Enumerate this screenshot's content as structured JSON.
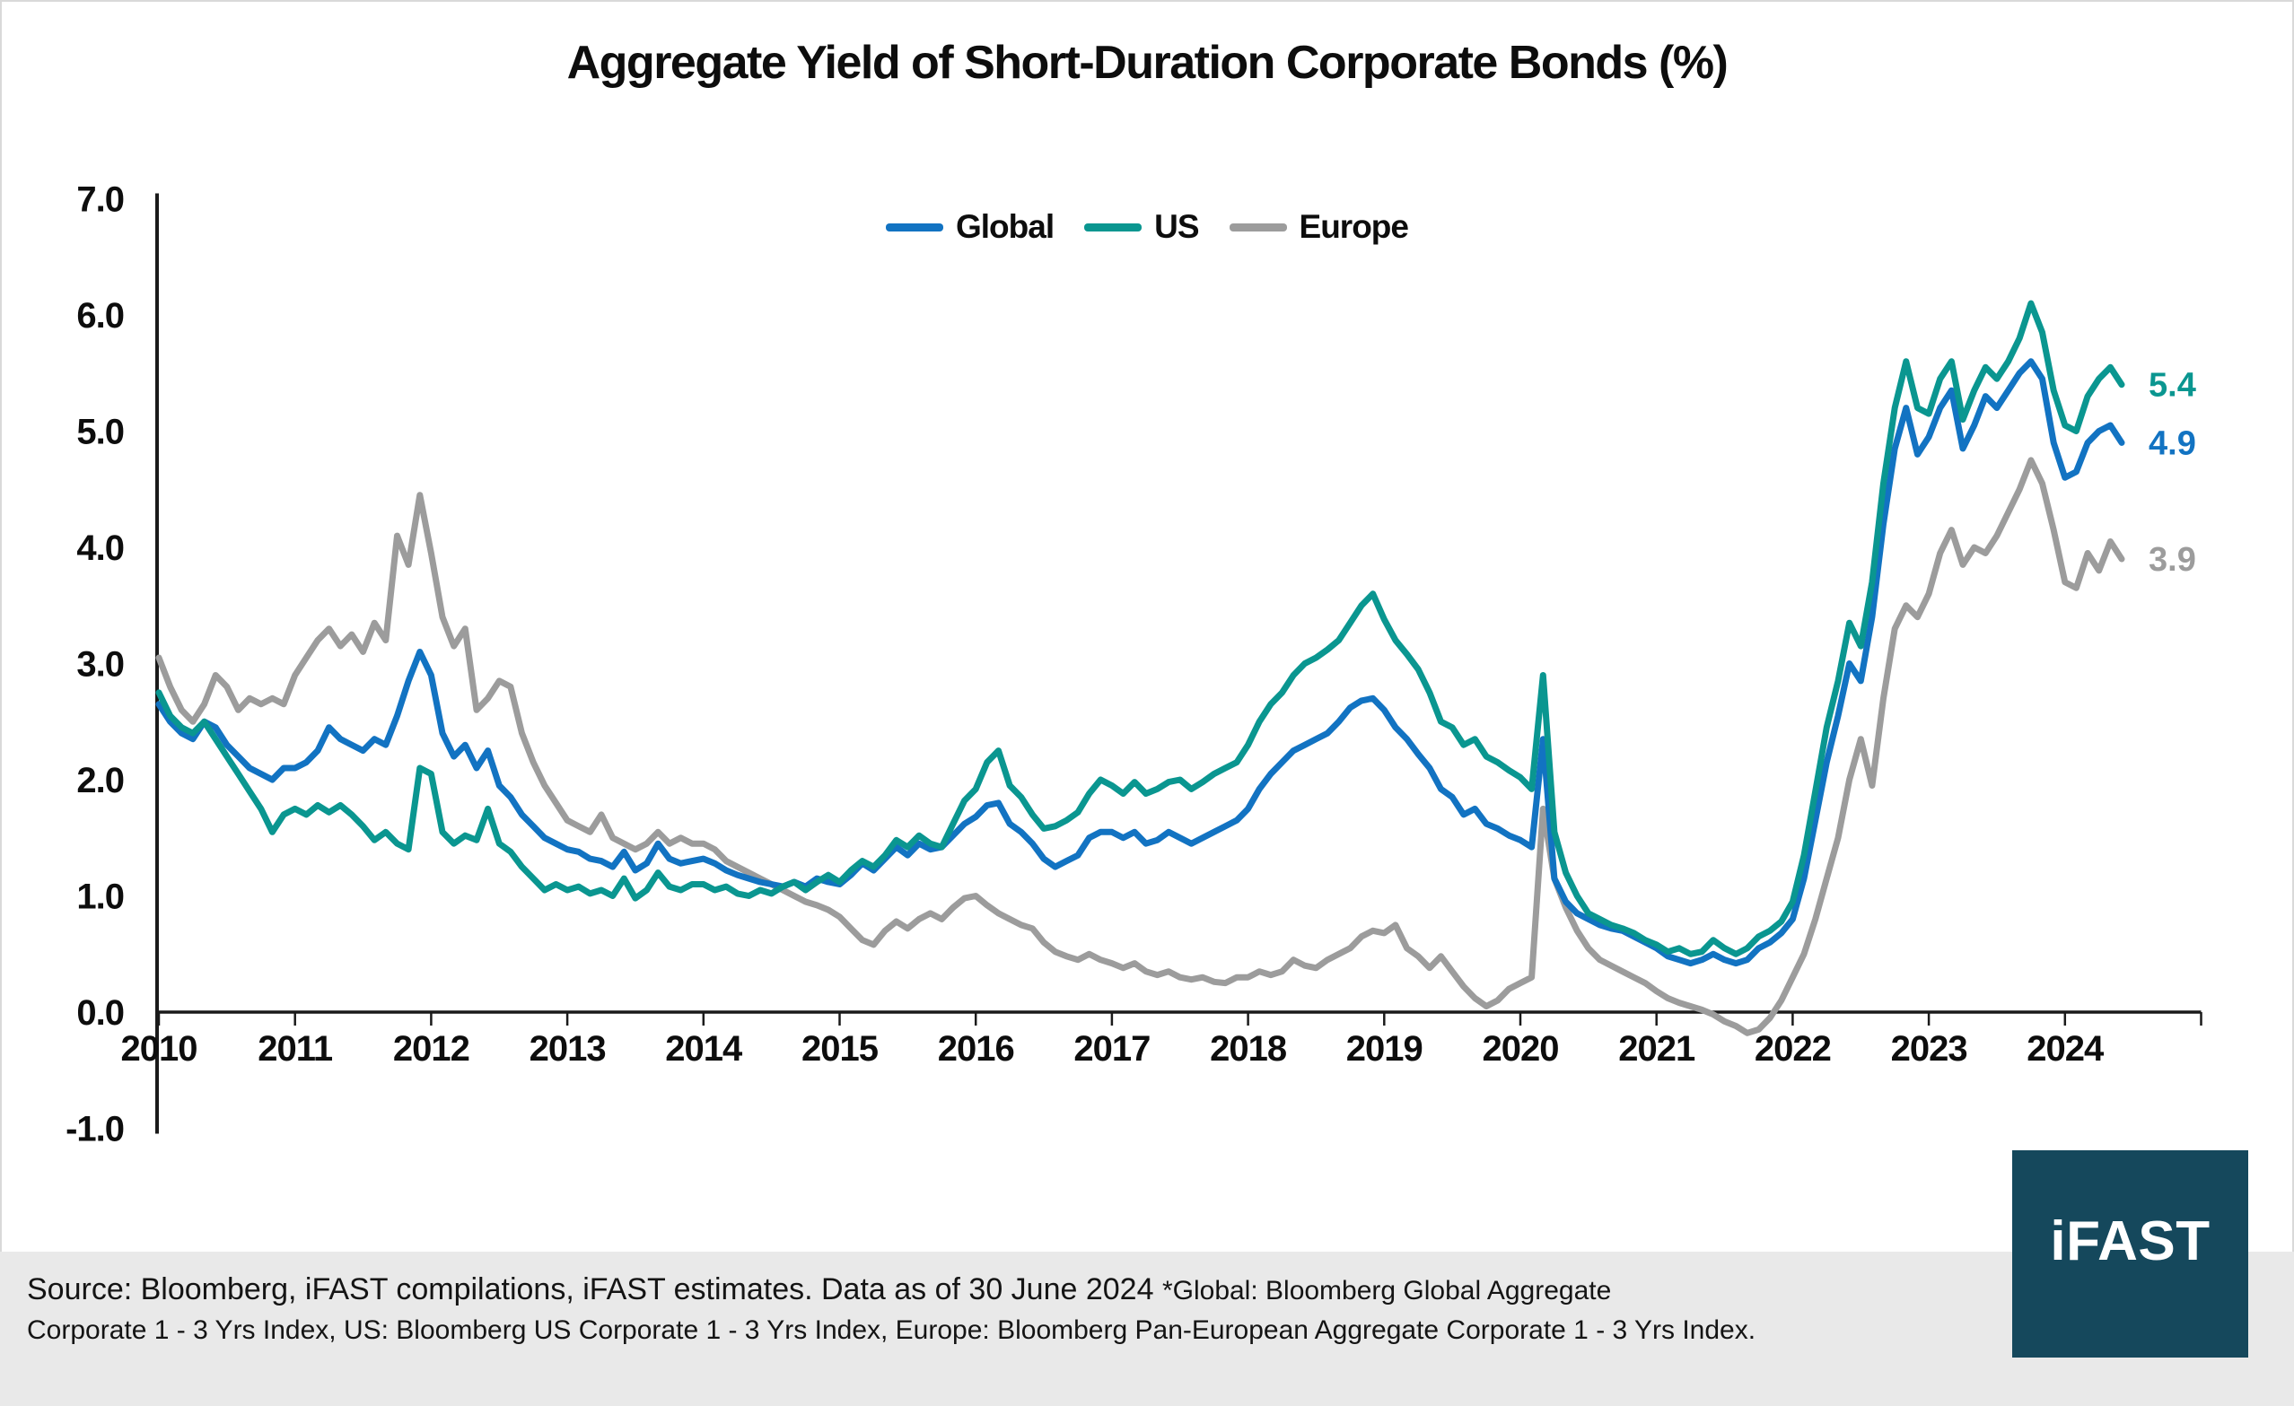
{
  "title": "Aggregate Yield of Short-Duration Corporate Bonds (%)",
  "chart_data": {
    "type": "line",
    "title": "Aggregate Yield of Short-Duration Corporate Bonds (%)",
    "x_start_year": 2010,
    "points_per_year": 12,
    "x_end": "2024-06",
    "xlim": [
      2010,
      2025
    ],
    "ylim": [
      -1.0,
      7.0
    ],
    "grid": "off",
    "legend_position": "top-center",
    "x_tick_labels": [
      "2010",
      "2011",
      "2012",
      "2013",
      "2014",
      "2015",
      "2016",
      "2017",
      "2018",
      "2019",
      "2020",
      "2021",
      "2022",
      "2023",
      "2024"
    ],
    "y_tick_labels": [
      "7.0",
      "6.0",
      "5.0",
      "4.0",
      "3.0",
      "2.0",
      "1.0",
      "0.0",
      "-1.0"
    ],
    "axis_color": "#1a1a1a",
    "series": [
      {
        "name": "Global",
        "color": "#1273C2",
        "end_label": "4.9",
        "values": [
          2.65,
          2.5,
          2.4,
          2.35,
          2.5,
          2.45,
          2.3,
          2.2,
          2.1,
          2.05,
          2.0,
          2.1,
          2.1,
          2.15,
          2.25,
          2.45,
          2.35,
          2.3,
          2.25,
          2.35,
          2.3,
          2.55,
          2.85,
          3.1,
          2.9,
          2.4,
          2.2,
          2.3,
          2.1,
          2.25,
          1.95,
          1.85,
          1.7,
          1.6,
          1.5,
          1.45,
          1.4,
          1.38,
          1.32,
          1.3,
          1.25,
          1.38,
          1.22,
          1.28,
          1.45,
          1.32,
          1.28,
          1.3,
          1.32,
          1.28,
          1.22,
          1.18,
          1.15,
          1.12,
          1.1,
          1.08,
          1.12,
          1.08,
          1.15,
          1.12,
          1.1,
          1.18,
          1.28,
          1.22,
          1.32,
          1.42,
          1.35,
          1.45,
          1.4,
          1.42,
          1.52,
          1.62,
          1.68,
          1.78,
          1.8,
          1.62,
          1.55,
          1.45,
          1.32,
          1.25,
          1.3,
          1.35,
          1.5,
          1.55,
          1.55,
          1.5,
          1.55,
          1.45,
          1.48,
          1.55,
          1.5,
          1.45,
          1.5,
          1.55,
          1.6,
          1.65,
          1.75,
          1.92,
          2.05,
          2.15,
          2.25,
          2.3,
          2.35,
          2.4,
          2.5,
          2.62,
          2.68,
          2.7,
          2.6,
          2.45,
          2.35,
          2.22,
          2.1,
          1.92,
          1.85,
          1.7,
          1.75,
          1.62,
          1.58,
          1.52,
          1.48,
          1.42,
          2.35,
          1.15,
          0.95,
          0.85,
          0.8,
          0.75,
          0.72,
          0.7,
          0.65,
          0.6,
          0.55,
          0.48,
          0.45,
          0.42,
          0.45,
          0.5,
          0.45,
          0.42,
          0.45,
          0.55,
          0.6,
          0.68,
          0.8,
          1.15,
          1.65,
          2.15,
          2.55,
          3.0,
          2.85,
          3.4,
          4.2,
          4.85,
          5.2,
          4.8,
          4.95,
          5.2,
          5.35,
          4.85,
          5.05,
          5.3,
          5.2,
          5.35,
          5.5,
          5.6,
          5.45,
          4.9,
          4.6,
          4.65,
          4.9,
          5.0,
          5.05,
          4.9
        ]
      },
      {
        "name": "US",
        "color": "#0A9690",
        "end_label": "5.4",
        "values": [
          2.75,
          2.55,
          2.45,
          2.4,
          2.5,
          2.35,
          2.2,
          2.05,
          1.9,
          1.75,
          1.55,
          1.7,
          1.75,
          1.7,
          1.78,
          1.72,
          1.78,
          1.7,
          1.6,
          1.48,
          1.55,
          1.45,
          1.4,
          2.1,
          2.05,
          1.55,
          1.45,
          1.52,
          1.48,
          1.75,
          1.45,
          1.38,
          1.25,
          1.15,
          1.05,
          1.1,
          1.05,
          1.08,
          1.02,
          1.05,
          1.0,
          1.15,
          0.98,
          1.05,
          1.2,
          1.08,
          1.05,
          1.1,
          1.1,
          1.05,
          1.08,
          1.02,
          1.0,
          1.05,
          1.02,
          1.08,
          1.12,
          1.05,
          1.12,
          1.18,
          1.12,
          1.22,
          1.3,
          1.25,
          1.35,
          1.48,
          1.42,
          1.52,
          1.45,
          1.42,
          1.62,
          1.82,
          1.92,
          2.15,
          2.25,
          1.95,
          1.85,
          1.7,
          1.58,
          1.6,
          1.65,
          1.72,
          1.88,
          2.0,
          1.95,
          1.88,
          1.98,
          1.88,
          1.92,
          1.98,
          2.0,
          1.92,
          1.98,
          2.05,
          2.1,
          2.15,
          2.3,
          2.5,
          2.65,
          2.75,
          2.9,
          3.0,
          3.05,
          3.12,
          3.2,
          3.35,
          3.5,
          3.6,
          3.38,
          3.2,
          3.08,
          2.95,
          2.75,
          2.5,
          2.45,
          2.3,
          2.35,
          2.2,
          2.15,
          2.08,
          2.02,
          1.92,
          2.9,
          1.55,
          1.2,
          1.0,
          0.85,
          0.8,
          0.75,
          0.72,
          0.68,
          0.62,
          0.58,
          0.52,
          0.55,
          0.5,
          0.52,
          0.62,
          0.55,
          0.5,
          0.55,
          0.65,
          0.7,
          0.78,
          0.95,
          1.35,
          1.9,
          2.45,
          2.85,
          3.35,
          3.15,
          3.7,
          4.55,
          5.2,
          5.6,
          5.2,
          5.15,
          5.45,
          5.6,
          5.1,
          5.35,
          5.55,
          5.45,
          5.6,
          5.8,
          6.1,
          5.85,
          5.35,
          5.05,
          5.0,
          5.3,
          5.45,
          5.55,
          5.4
        ]
      },
      {
        "name": "Europe",
        "color": "#9C9C9C",
        "end_label": "3.9",
        "values": [
          3.05,
          2.8,
          2.6,
          2.5,
          2.65,
          2.9,
          2.8,
          2.6,
          2.7,
          2.65,
          2.7,
          2.65,
          2.9,
          3.05,
          3.2,
          3.3,
          3.15,
          3.25,
          3.1,
          3.35,
          3.2,
          4.1,
          3.85,
          4.45,
          3.95,
          3.4,
          3.15,
          3.3,
          2.6,
          2.7,
          2.85,
          2.8,
          2.4,
          2.15,
          1.95,
          1.8,
          1.65,
          1.6,
          1.55,
          1.7,
          1.5,
          1.45,
          1.4,
          1.45,
          1.55,
          1.45,
          1.5,
          1.45,
          1.45,
          1.4,
          1.3,
          1.25,
          1.2,
          1.15,
          1.1,
          1.05,
          1.0,
          0.95,
          0.92,
          0.88,
          0.82,
          0.72,
          0.62,
          0.58,
          0.7,
          0.78,
          0.72,
          0.8,
          0.85,
          0.8,
          0.9,
          0.98,
          1.0,
          0.92,
          0.85,
          0.8,
          0.75,
          0.72,
          0.6,
          0.52,
          0.48,
          0.45,
          0.5,
          0.45,
          0.42,
          0.38,
          0.42,
          0.35,
          0.32,
          0.35,
          0.3,
          0.28,
          0.3,
          0.26,
          0.25,
          0.3,
          0.3,
          0.35,
          0.32,
          0.35,
          0.45,
          0.4,
          0.38,
          0.45,
          0.5,
          0.55,
          0.65,
          0.7,
          0.68,
          0.75,
          0.55,
          0.48,
          0.38,
          0.48,
          0.35,
          0.22,
          0.12,
          0.05,
          0.1,
          0.2,
          0.25,
          0.3,
          1.75,
          1.15,
          0.9,
          0.7,
          0.55,
          0.45,
          0.4,
          0.35,
          0.3,
          0.25,
          0.18,
          0.12,
          0.08,
          0.05,
          0.02,
          -0.02,
          -0.08,
          -0.12,
          -0.18,
          -0.15,
          -0.05,
          0.1,
          0.3,
          0.5,
          0.8,
          1.15,
          1.5,
          2.0,
          2.35,
          1.95,
          2.7,
          3.3,
          3.5,
          3.4,
          3.6,
          3.95,
          4.15,
          3.85,
          4.0,
          3.95,
          4.1,
          4.3,
          4.5,
          4.75,
          4.55,
          4.15,
          3.7,
          3.65,
          3.95,
          3.8,
          4.05,
          3.9
        ]
      }
    ]
  },
  "footer": {
    "line1_main": "Source: Bloomberg, iFAST compilations, iFAST estimates. Data as of 30 June 2024 ",
    "line1_note": "*Global: Bloomberg Global Aggregate",
    "line2": "Corporate 1 - 3 Yrs Index, US: Bloomberg US Corporate 1 - 3 Yrs Index, Europe: Bloomberg Pan-European Aggregate Corporate 1 - 3 Yrs Index."
  },
  "logo": {
    "text": "iFAST",
    "background": "#15485C"
  }
}
